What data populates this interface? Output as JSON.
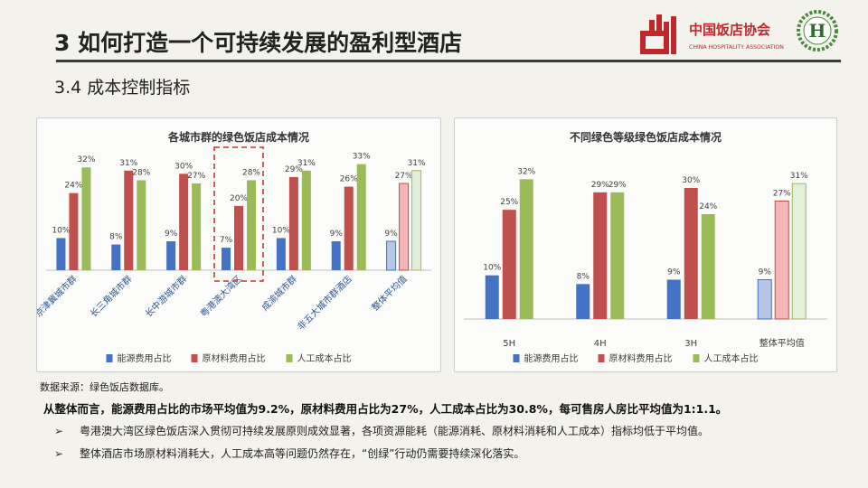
{
  "header": {
    "title": "3 如何打造一个可持续发展的盈利型酒店",
    "subtitle": "3.4 成本控制指标",
    "logo_name": "中国饭店协会",
    "logo_english": "CHINA HOSPITALITY ASSOCIATION",
    "logo_letters": "CHA",
    "logo_h": "H"
  },
  "colors": {
    "energy": "#4472c4",
    "material": "#c0504d",
    "labor": "#9bbb59",
    "energy_light": "#b4c7e7",
    "material_light": "#f4b6b6",
    "labor_light": "#e2efd9",
    "highlight_box": "#c0392b"
  },
  "legend": [
    "能源费用占比",
    "原材料费用占比",
    "人工成本占比"
  ],
  "chart_data": [
    {
      "type": "bar",
      "title": "各城市群的绿色饭店成本情况",
      "categories": [
        "京津冀城市群",
        "长三角城市群",
        "长中游城市群",
        "粤港澳大湾区",
        "成渝城市群",
        "非五大城市群酒店",
        "整体平均值"
      ],
      "series": [
        {
          "name": "能源费用占比",
          "values": [
            10,
            8,
            9,
            7,
            10,
            9,
            9
          ]
        },
        {
          "name": "原材料费用占比",
          "values": [
            24,
            31,
            30,
            20,
            29,
            26,
            27
          ]
        },
        {
          "name": "人工成本占比",
          "values": [
            32,
            28,
            27,
            28,
            31,
            33,
            31
          ]
        }
      ],
      "unit": "%",
      "highlight_category": "粤港澳大湾区",
      "average_category": "整体平均值",
      "ylim": [
        0,
        36
      ],
      "legend_position": "bottom"
    },
    {
      "type": "bar",
      "title": "不同绿色等级绿色饭店成本情况",
      "categories": [
        "5H",
        "4H",
        "3H",
        "整体平均值"
      ],
      "series": [
        {
          "name": "能源费用占比",
          "values": [
            10,
            8,
            9,
            9
          ]
        },
        {
          "name": "原材料费用占比",
          "values": [
            25,
            29,
            30,
            27
          ]
        },
        {
          "name": "人工成本占比",
          "values": [
            32,
            29,
            24,
            31
          ]
        }
      ],
      "unit": "%",
      "average_category": "整体平均值",
      "ylim": [
        0,
        36
      ],
      "legend_position": "bottom"
    }
  ],
  "footer": {
    "source": "数据来源：绿色饭店数据库。",
    "summary": "从整体而言，能源费用占比的市场平均值为9.2%，原材料费用占比为27%，人工成本占比为30.8%，每可售房人房比平均值为1:1.1。",
    "bullet_marker": "➢",
    "bullets": [
      "粤港澳大湾区绿色饭店深入贯彻可持续发展原则成效显著，各项资源能耗（能源消耗、原材料消耗和人工成本）指标均低于平均值。",
      "整体酒店市场原材料消耗大，人工成本高等问题仍然存在，“创绿”行动仍需要持续深化落实。"
    ]
  }
}
